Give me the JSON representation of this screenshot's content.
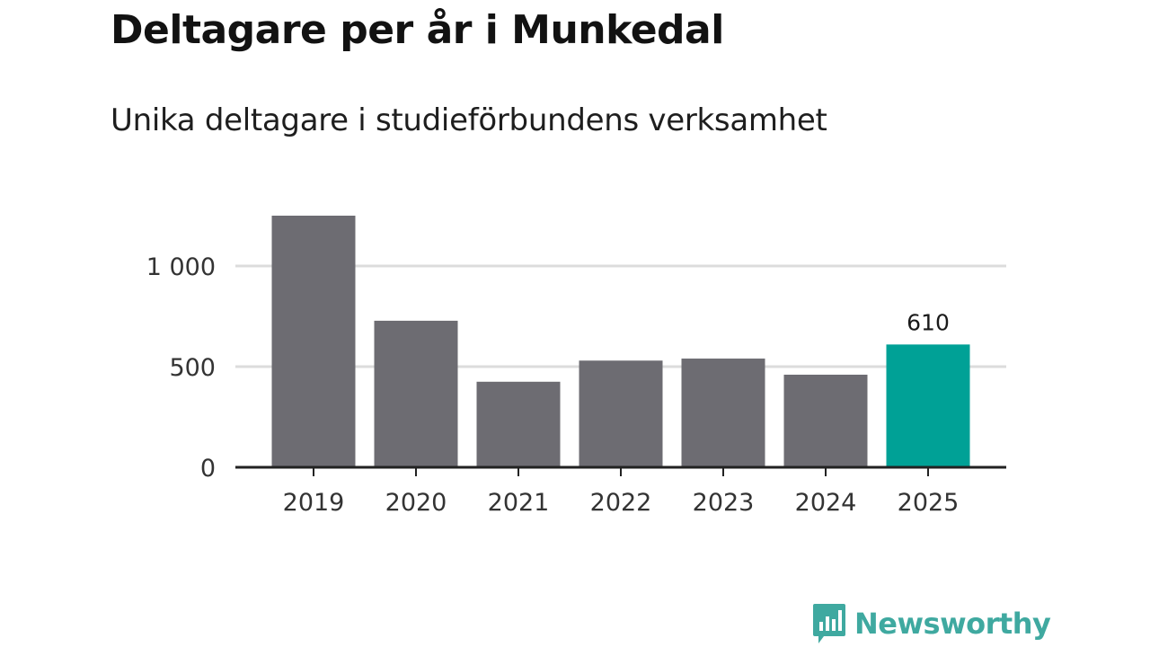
{
  "header": {
    "title": "Deltagare per år i Munkedal",
    "subtitle": "Unika deltagare i studieförbundens verksamhet"
  },
  "branding": {
    "logo_text": "Newsworthy",
    "logo_color": "#3fa9a0",
    "logo_icon": "bar-chart-speech-bubble-icon"
  },
  "chart_data": {
    "type": "bar",
    "categories": [
      "2019",
      "2020",
      "2021",
      "2022",
      "2023",
      "2024",
      "2025"
    ],
    "values": [
      1250,
      728,
      425,
      530,
      540,
      460,
      610
    ],
    "highlight_index": 6,
    "data_labels": {
      "6": "610"
    },
    "yticks": [
      0,
      500,
      1000
    ],
    "ytick_labels": [
      "0",
      "500",
      "1 000"
    ],
    "ylim": [
      0,
      1250
    ],
    "grid": true,
    "colors": {
      "bar": "#6d6c72",
      "highlight": "#00a196",
      "grid": "#dcdcdc",
      "axis": "#222222"
    }
  }
}
